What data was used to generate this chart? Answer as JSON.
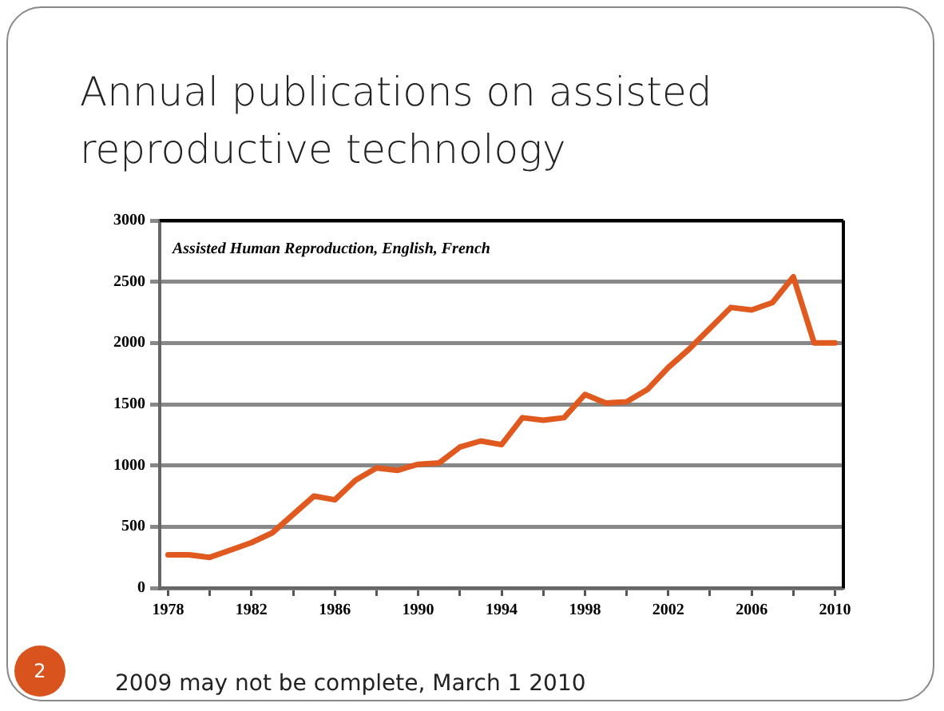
{
  "chart_data": {
    "type": "line",
    "title": "Annual publications on assisted reproductive technology",
    "x": [
      1978,
      1979,
      1980,
      1981,
      1982,
      1983,
      1984,
      1985,
      1986,
      1987,
      1988,
      1989,
      1990,
      1991,
      1992,
      1993,
      1994,
      1995,
      1996,
      1997,
      1998,
      1999,
      2000,
      2001,
      2002,
      2003,
      2004,
      2005,
      2006,
      2007,
      2008,
      2009,
      2010
    ],
    "series": [
      {
        "color": "#e05a20",
        "values": [
          270,
          270,
          250,
          310,
          370,
          450,
          600,
          750,
          720,
          880,
          980,
          960,
          1010,
          1020,
          1150,
          1200,
          1170,
          1390,
          1370,
          1390,
          1580,
          1510,
          1520,
          1620,
          1800,
          1950,
          2120,
          2290,
          2270,
          2330,
          2540,
          2000,
          2000
        ]
      }
    ],
    "xlim": [
      1977.6,
      2010.4
    ],
    "xticks": [
      1978,
      {
        "value": 1980,
        "label": null
      },
      1982,
      {
        "value": 1984,
        "label": null
      },
      1986,
      {
        "value": 1988,
        "label": null
      },
      1990,
      {
        "value": 1992,
        "label": null
      },
      1994,
      {
        "value": 1996,
        "label": null
      },
      1998,
      {
        "value": 2000,
        "label": null
      },
      2002,
      {
        "value": 2004,
        "label": null
      },
      2006,
      {
        "value": 2008,
        "label": null
      },
      2010
    ],
    "ylim": [
      0,
      3000
    ],
    "yticks": [
      0,
      500,
      1000,
      1500,
      2000,
      2500,
      3000
    ],
    "grid": "y",
    "legend": false,
    "marker": "none",
    "line_style": "solid",
    "annotations": [
      "Assisted Human Reproduction, English, French",
      "2009 may not be complete, March 1 2010",
      "2"
    ]
  }
}
